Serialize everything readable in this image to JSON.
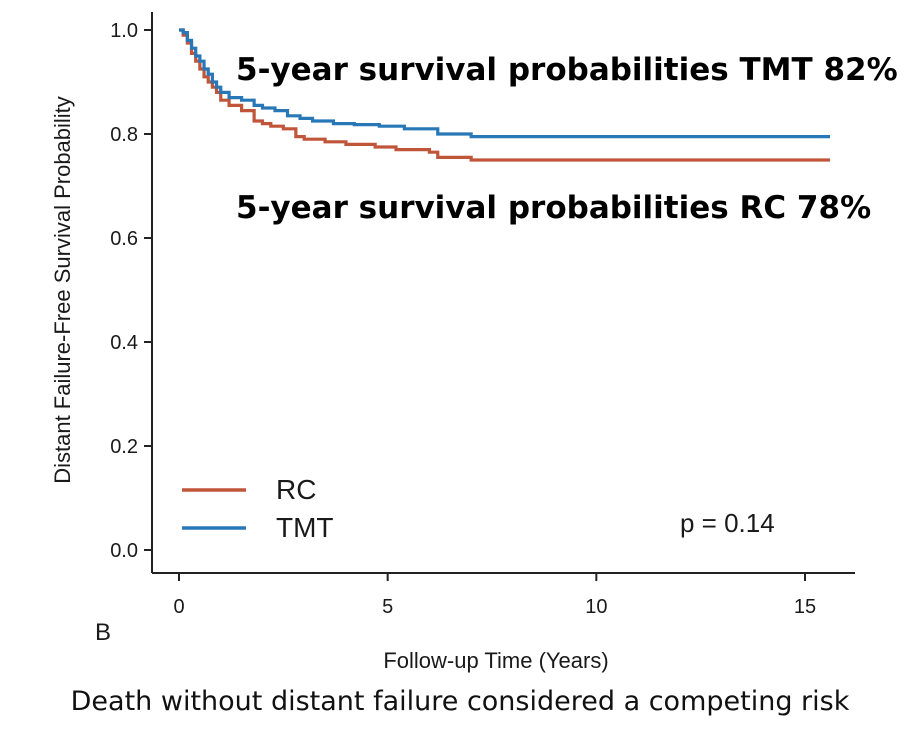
{
  "panel_label": "B",
  "caption": "Death without distant failure considered a competing risk",
  "chart_data": {
    "type": "line",
    "step": true,
    "xlabel": "Follow-up Time (Years)",
    "ylabel": "Distant Failure-Free Survival Probability",
    "xlim": [
      0,
      16
    ],
    "ylim": [
      0,
      1.0
    ],
    "xticks": [
      0,
      5,
      10,
      15
    ],
    "yticks": [
      0.0,
      0.2,
      0.4,
      0.6,
      0.8,
      1.0
    ],
    "ytick_labels": [
      "0.0",
      "0.2",
      "0.4",
      "0.6",
      "0.8",
      "1.0"
    ],
    "grid": false,
    "legend_position": "bottom-left",
    "series": [
      {
        "name": "RC",
        "color": "#c0553a",
        "x": [
          0,
          0.1,
          0.2,
          0.3,
          0.4,
          0.5,
          0.6,
          0.7,
          0.8,
          0.9,
          1.0,
          1.2,
          1.5,
          1.8,
          2.0,
          2.2,
          2.5,
          2.8,
          3.0,
          3.5,
          4.0,
          4.7,
          5.2,
          6.0,
          6.2,
          7.0,
          10.0,
          15.6
        ],
        "y": [
          1.0,
          0.99,
          0.975,
          0.955,
          0.94,
          0.925,
          0.91,
          0.9,
          0.89,
          0.88,
          0.865,
          0.855,
          0.845,
          0.825,
          0.82,
          0.815,
          0.81,
          0.795,
          0.79,
          0.785,
          0.78,
          0.775,
          0.77,
          0.765,
          0.755,
          0.75,
          0.75,
          0.75
        ]
      },
      {
        "name": "TMT",
        "color": "#2878b8",
        "x": [
          0,
          0.1,
          0.2,
          0.3,
          0.4,
          0.5,
          0.6,
          0.7,
          0.8,
          0.9,
          1.0,
          1.2,
          1.5,
          1.8,
          2.0,
          2.3,
          2.6,
          2.9,
          3.2,
          3.7,
          4.2,
          4.8,
          5.4,
          6.2,
          7.0,
          10.0,
          15.6
        ],
        "y": [
          1.0,
          0.995,
          0.98,
          0.965,
          0.95,
          0.94,
          0.925,
          0.915,
          0.9,
          0.89,
          0.88,
          0.87,
          0.865,
          0.855,
          0.85,
          0.845,
          0.835,
          0.83,
          0.825,
          0.82,
          0.818,
          0.815,
          0.81,
          0.8,
          0.795,
          0.795,
          0.795
        ]
      }
    ],
    "annotations": [
      "5-year survival probabilities TMT 82%",
      "5-year survival probabilities RC 78%",
      "p = 0.14"
    ]
  }
}
